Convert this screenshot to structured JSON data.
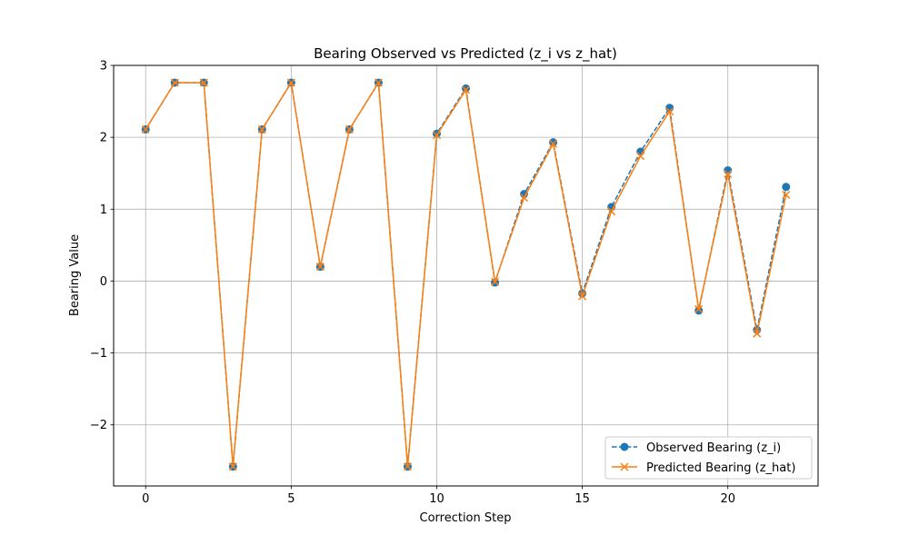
{
  "chart_data": {
    "type": "line",
    "title": "Bearing Observed vs Predicted (z_i vs z_hat)",
    "xlabel": "Correction Step",
    "ylabel": "Bearing Value",
    "xlim": [
      -1.1,
      23.1
    ],
    "ylim": [
      -2.85,
      3.0
    ],
    "xticks": [
      0,
      5,
      10,
      15,
      20
    ],
    "yticks": [
      -2,
      -1,
      0,
      1,
      2,
      3
    ],
    "ytick_labels": [
      "−2",
      "−1",
      "0",
      "1",
      "2",
      "3"
    ],
    "grid": true,
    "legend_position": "lower-right",
    "x": [
      0,
      1,
      2,
      3,
      4,
      5,
      6,
      7,
      8,
      9,
      10,
      11,
      12,
      13,
      14,
      15,
      16,
      17,
      18,
      19,
      20,
      21,
      22
    ],
    "series": [
      {
        "name": "Observed Bearing (z_i)",
        "color": "#1f77b4",
        "line_style": "dashed",
        "marker": "circle",
        "values": [
          2.11,
          2.76,
          2.76,
          -2.58,
          2.11,
          2.76,
          0.2,
          2.11,
          2.76,
          -2.58,
          2.05,
          2.68,
          -0.02,
          1.21,
          1.93,
          -0.17,
          1.03,
          1.8,
          2.41,
          -0.41,
          1.54,
          -0.68,
          1.31
        ]
      },
      {
        "name": "Predicted Bearing (z_hat)",
        "color": "#ff7f0e",
        "line_style": "solid",
        "marker": "x",
        "values": [
          2.11,
          2.76,
          2.76,
          -2.58,
          2.11,
          2.76,
          0.2,
          2.11,
          2.76,
          -2.58,
          2.03,
          2.66,
          -0.01,
          1.16,
          1.91,
          -0.21,
          0.97,
          1.74,
          2.36,
          -0.39,
          1.49,
          -0.73,
          1.2
        ]
      }
    ]
  }
}
